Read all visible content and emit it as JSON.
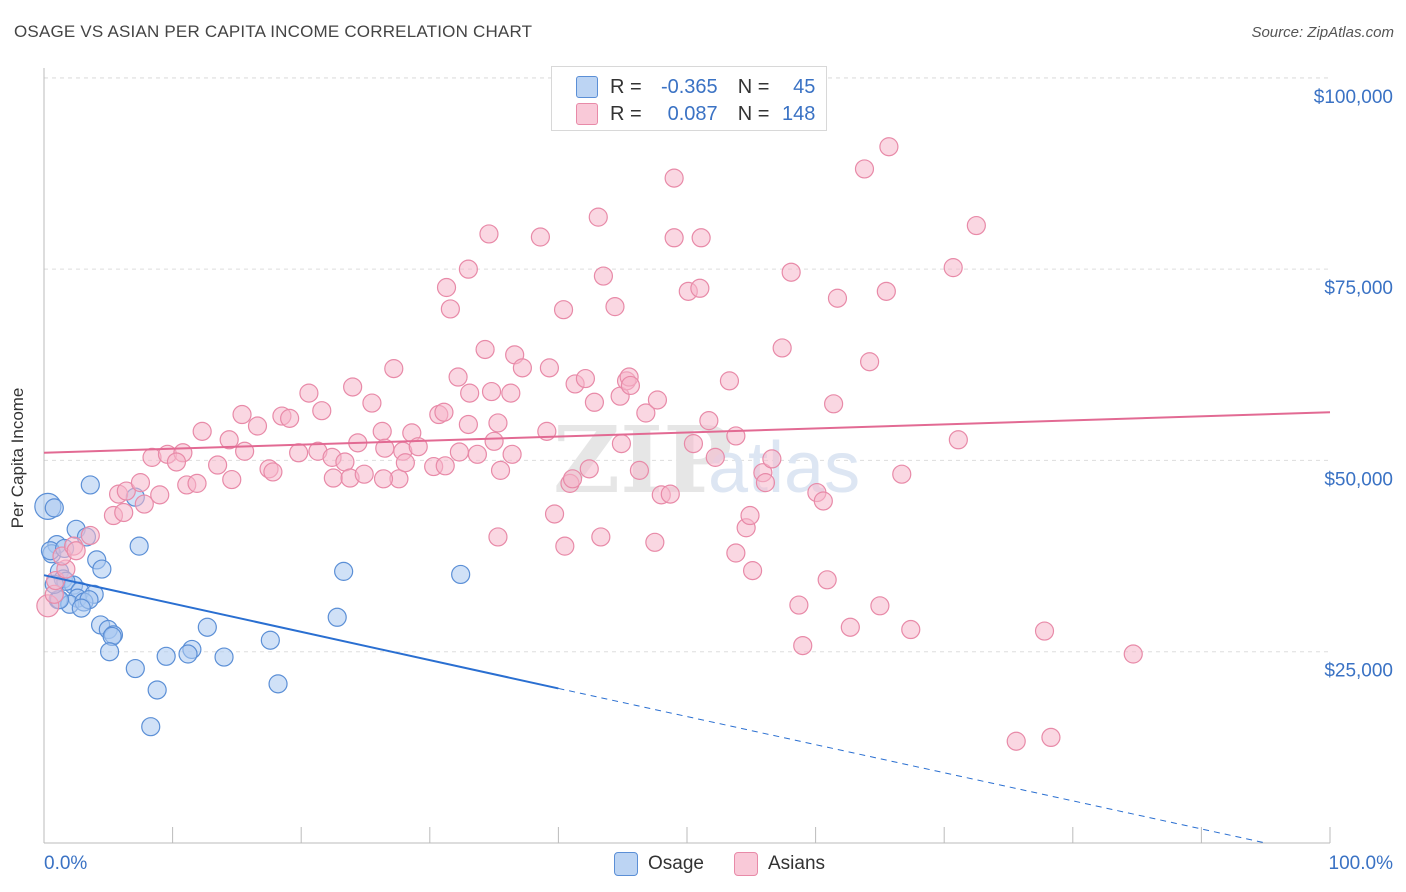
{
  "title": "OSAGE VS ASIAN PER CAPITA INCOME CORRELATION CHART",
  "source": "Source: ZipAtlas.com",
  "watermark": "ZIPatlas",
  "colors": {
    "osage_fill": "#a9c8f0",
    "osage_stroke": "#5b8fd6",
    "osage_line": "#2a6fd1",
    "asians_fill": "#f6b7cb",
    "asians_stroke": "#e88aa8",
    "asians_line": "#e26a93",
    "axis_text": "#3a72c4"
  },
  "legend": {
    "rows": [
      {
        "r_label": "R =",
        "r_value": "-0.365",
        "n_label": "N =",
        "n_value": "45"
      },
      {
        "r_label": "R =",
        "r_value": "0.087",
        "n_label": "N =",
        "n_value": "148"
      }
    ]
  },
  "bottom_legend": {
    "osage": "Osage",
    "asians": "Asians"
  },
  "chart_data": {
    "type": "scatter",
    "ylabel": "Per Capita Income",
    "xlabel": "",
    "xlim": [
      0,
      100
    ],
    "ylim": [
      0,
      104000
    ],
    "x_tick_labels": [
      "0.0%",
      "100.0%"
    ],
    "y_ticks": [
      25000,
      50000,
      75000,
      100000
    ],
    "y_tick_labels": [
      "$25,000",
      "$50,000",
      "$75,000",
      "$100,000"
    ],
    "grid": true,
    "series": [
      {
        "name": "Osage",
        "trend": {
          "x": [
            0,
            40
          ],
          "y": [
            35000,
            20200
          ],
          "dashed_to": [
            95,
            0
          ]
        },
        "points": [
          [
            0.3,
            44000,
            4
          ],
          [
            0.8,
            43800,
            2
          ],
          [
            1,
            39000,
            2
          ],
          [
            0.6,
            37800,
            2
          ],
          [
            0.5,
            38200,
            2
          ],
          [
            1.6,
            38500,
            2
          ],
          [
            3.6,
            46800,
            2
          ],
          [
            2.5,
            41000,
            2
          ],
          [
            3.3,
            40000,
            2
          ],
          [
            4.1,
            37000,
            2
          ],
          [
            4.5,
            35800,
            2
          ],
          [
            1.2,
            35500,
            2
          ],
          [
            1.5,
            34500,
            2
          ],
          [
            2.3,
            33700,
            2
          ],
          [
            1.7,
            34200,
            2
          ],
          [
            2.8,
            32900,
            2
          ],
          [
            3.9,
            32500,
            2
          ],
          [
            2.6,
            32000,
            2
          ],
          [
            1.1,
            31800,
            2
          ],
          [
            2,
            31200,
            2
          ],
          [
            3.1,
            31500,
            2
          ],
          [
            3.5,
            31800,
            2
          ],
          [
            2.9,
            30700,
            2
          ],
          [
            4.4,
            28500,
            2
          ],
          [
            5,
            27900,
            2
          ],
          [
            5.4,
            27200,
            2
          ],
          [
            5.3,
            27000,
            2
          ],
          [
            7.1,
            45200,
            2
          ],
          [
            7.4,
            38800,
            2
          ],
          [
            12.7,
            28200,
            2
          ],
          [
            17.6,
            26500,
            2
          ],
          [
            11.5,
            25300,
            2
          ],
          [
            11.2,
            24700,
            2
          ],
          [
            9.5,
            24400,
            2
          ],
          [
            14,
            24300,
            2
          ],
          [
            5.1,
            25000,
            2
          ],
          [
            7.1,
            22800,
            2
          ],
          [
            8.8,
            20000,
            2
          ],
          [
            18.2,
            20800,
            2
          ],
          [
            8.3,
            15200,
            2
          ],
          [
            23.3,
            35500,
            2
          ],
          [
            22.8,
            29500,
            2
          ],
          [
            32.4,
            35100,
            2
          ],
          [
            1.2,
            31800,
            2
          ],
          [
            0.8,
            33800,
            2
          ]
        ]
      },
      {
        "name": "Asians",
        "trend": {
          "x": [
            0,
            100
          ],
          "y": [
            51000,
            56300
          ]
        },
        "points": [
          [
            0.3,
            31000,
            3
          ],
          [
            0.8,
            32500,
            2
          ],
          [
            0.9,
            34300,
            2
          ],
          [
            1.7,
            35800,
            2
          ],
          [
            1.4,
            37500,
            2
          ],
          [
            2.3,
            38800,
            2
          ],
          [
            2.5,
            38200,
            2
          ],
          [
            3.6,
            40200,
            2
          ],
          [
            5.4,
            42800,
            2
          ],
          [
            6.2,
            43200,
            2
          ],
          [
            5.8,
            45600,
            2
          ],
          [
            6.4,
            46000,
            2
          ],
          [
            7.5,
            47100,
            2
          ],
          [
            7.8,
            44300,
            2
          ],
          [
            9,
            45500,
            2
          ],
          [
            8.4,
            50400,
            2
          ],
          [
            9.6,
            50800,
            2
          ],
          [
            10.8,
            51000,
            2
          ],
          [
            10.3,
            49800,
            2
          ],
          [
            11.1,
            46800,
            2
          ],
          [
            11.9,
            47000,
            2
          ],
          [
            13.5,
            49400,
            2
          ],
          [
            14.6,
            47500,
            2
          ],
          [
            12.3,
            53800,
            2
          ],
          [
            14.4,
            52700,
            2
          ],
          [
            15.6,
            51200,
            2
          ],
          [
            15.4,
            56000,
            2
          ],
          [
            16.6,
            54500,
            2
          ],
          [
            17.5,
            48900,
            2
          ],
          [
            17.8,
            48500,
            2
          ],
          [
            18.5,
            55800,
            2
          ],
          [
            19.1,
            55500,
            2
          ],
          [
            19.8,
            51000,
            2
          ],
          [
            20.6,
            58800,
            2
          ],
          [
            21.3,
            51200,
            2
          ],
          [
            21.6,
            56500,
            2
          ],
          [
            22.4,
            50400,
            2
          ],
          [
            22.5,
            47700,
            2
          ],
          [
            23.4,
            49800,
            2
          ],
          [
            23.8,
            47700,
            2
          ],
          [
            24.4,
            52300,
            2
          ],
          [
            24.9,
            48200,
            2
          ],
          [
            25.5,
            57500,
            2
          ],
          [
            24,
            59600,
            2
          ],
          [
            26.3,
            53800,
            2
          ],
          [
            26.5,
            51600,
            2
          ],
          [
            27.2,
            62000,
            2
          ],
          [
            27.6,
            47600,
            2
          ],
          [
            27.9,
            51200,
            2
          ],
          [
            28.6,
            53600,
            2
          ],
          [
            29.1,
            51800,
            2
          ],
          [
            30.3,
            49200,
            2
          ],
          [
            30.7,
            56000,
            2
          ],
          [
            31.1,
            56300,
            2
          ],
          [
            31.2,
            49300,
            2
          ],
          [
            32.2,
            60900,
            2
          ],
          [
            32.3,
            51100,
            2
          ],
          [
            33.1,
            58800,
            2
          ],
          [
            33.7,
            50800,
            2
          ],
          [
            35.3,
            54900,
            2
          ],
          [
            35,
            52500,
            2
          ],
          [
            35.5,
            48700,
            2
          ],
          [
            34.3,
            64500,
            2
          ],
          [
            34.8,
            59000,
            2
          ],
          [
            33,
            54700,
            2
          ],
          [
            31.3,
            72600,
            2
          ],
          [
            31.6,
            69800,
            2
          ],
          [
            33,
            75000,
            2
          ],
          [
            34.6,
            79600,
            2
          ],
          [
            35.3,
            40000,
            2
          ],
          [
            36.3,
            58800,
            2
          ],
          [
            36.6,
            63800,
            2
          ],
          [
            37.2,
            62100,
            2
          ],
          [
            39.1,
            53800,
            2
          ],
          [
            39.3,
            62100,
            2
          ],
          [
            38.6,
            79200,
            2
          ],
          [
            39.7,
            43000,
            2
          ],
          [
            40.4,
            69700,
            2
          ],
          [
            40.5,
            38800,
            2
          ],
          [
            40.9,
            47000,
            2
          ],
          [
            41.1,
            47600,
            2
          ],
          [
            41.3,
            60000,
            2
          ],
          [
            42.1,
            60700,
            2
          ],
          [
            42.4,
            48900,
            2
          ],
          [
            42.8,
            57600,
            2
          ],
          [
            43.3,
            40000,
            2
          ],
          [
            43.1,
            81800,
            2
          ],
          [
            43.5,
            74100,
            2
          ],
          [
            44.4,
            70100,
            2
          ],
          [
            44.8,
            58400,
            2
          ],
          [
            44.9,
            52200,
            2
          ],
          [
            45.3,
            60400,
            2
          ],
          [
            45.5,
            60900,
            2
          ],
          [
            45.6,
            59800,
            2
          ],
          [
            46.3,
            48700,
            2
          ],
          [
            46.8,
            56200,
            2
          ],
          [
            47.5,
            39300,
            2
          ],
          [
            47.7,
            57900,
            2
          ],
          [
            48,
            45500,
            2
          ],
          [
            48.7,
            45600,
            2
          ],
          [
            49,
            79100,
            2
          ],
          [
            49,
            86900,
            2
          ],
          [
            50.5,
            52200,
            2
          ],
          [
            50.1,
            72100,
            2
          ],
          [
            51,
            72500,
            2
          ],
          [
            51.1,
            79100,
            2
          ],
          [
            51.7,
            55200,
            2
          ],
          [
            52.2,
            50400,
            2
          ],
          [
            53.3,
            60400,
            2
          ],
          [
            53.8,
            53200,
            2
          ],
          [
            53.8,
            37900,
            2
          ],
          [
            54.6,
            41200,
            2
          ],
          [
            54.9,
            42800,
            2
          ],
          [
            55.1,
            35600,
            2
          ],
          [
            55.9,
            48400,
            2
          ],
          [
            56.1,
            47100,
            2
          ],
          [
            56.6,
            50200,
            2
          ],
          [
            57.4,
            64700,
            2
          ],
          [
            58.1,
            74600,
            2
          ],
          [
            58.7,
            31100,
            2
          ],
          [
            59,
            25800,
            2
          ],
          [
            60.1,
            45800,
            2
          ],
          [
            60.6,
            44700,
            2
          ],
          [
            60.9,
            34400,
            2
          ],
          [
            61.4,
            57400,
            2
          ],
          [
            61.7,
            71200,
            2
          ],
          [
            62.7,
            28200,
            2
          ],
          [
            63.8,
            88100,
            2
          ],
          [
            64.2,
            62900,
            2
          ],
          [
            65,
            31000,
            2
          ],
          [
            65.5,
            72100,
            2
          ],
          [
            65.7,
            91000,
            2
          ],
          [
            66.7,
            48200,
            2
          ],
          [
            67.4,
            27900,
            2
          ],
          [
            70.7,
            75200,
            2
          ],
          [
            71.1,
            52700,
            2
          ],
          [
            72.5,
            80700,
            2
          ],
          [
            75.6,
            13300,
            2
          ],
          [
            77.8,
            27700,
            2
          ],
          [
            78.3,
            13800,
            2
          ],
          [
            84.7,
            24700,
            2
          ],
          [
            28.1,
            49700,
            2
          ],
          [
            36.4,
            50800,
            2
          ],
          [
            26.4,
            47600,
            2
          ]
        ]
      }
    ]
  }
}
